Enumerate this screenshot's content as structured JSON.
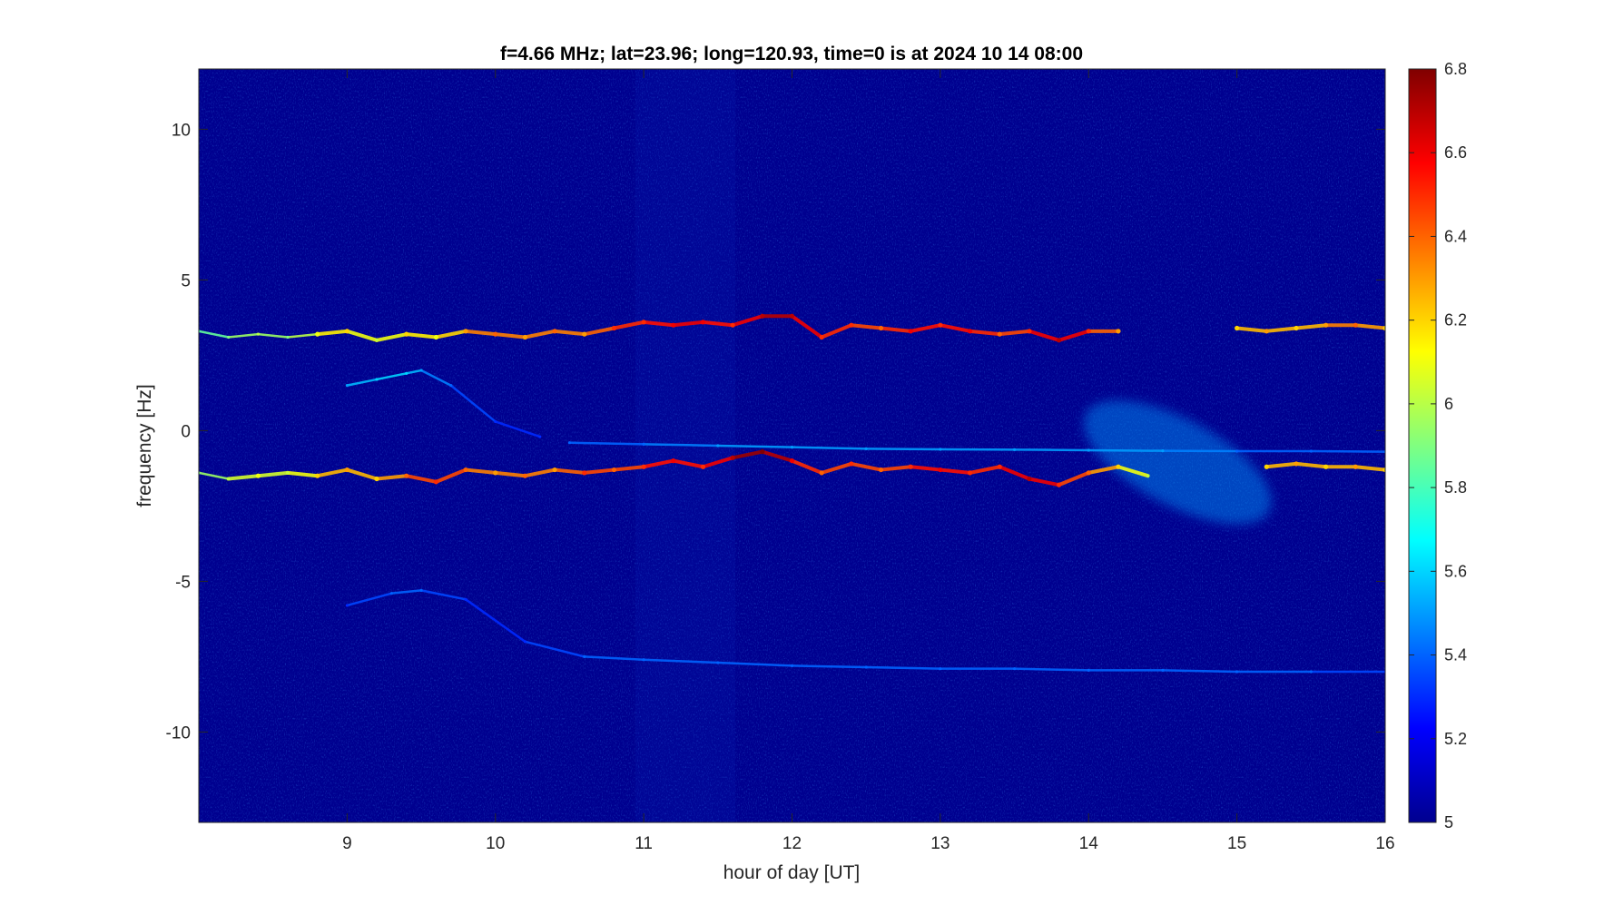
{
  "chart_data": {
    "type": "heatmap",
    "title": "f=4.66 MHz;  lat=23.96; long=120.93, time=0 is at 2024 10 14 08:00",
    "xlabel": "hour of day [UT]",
    "ylabel": "frequency [Hz]",
    "xlim": [
      8.0,
      16.0
    ],
    "ylim": [
      -13.0,
      12.0
    ],
    "xticks": [
      9,
      10,
      11,
      12,
      13,
      14,
      15,
      16
    ],
    "xtick_labels": [
      "9",
      "10",
      "11",
      "12",
      "13",
      "14",
      "15",
      "16"
    ],
    "yticks": [
      -10,
      -5,
      0,
      5,
      10
    ],
    "ytick_labels": [
      "-10",
      "-5",
      "0",
      "5",
      "10"
    ],
    "colormap": "jet",
    "clim": [
      5.0,
      6.8
    ],
    "colorbar_ticks": [
      5,
      5.2,
      5.4,
      5.6,
      5.8,
      6,
      6.2,
      6.4,
      6.6,
      6.8
    ],
    "colorbar_tick_labels": [
      "5",
      "5.2",
      "5.4",
      "5.6",
      "5.8",
      "6",
      "6.2",
      "6.4",
      "6.6",
      "6.8"
    ],
    "background_color": "#00008f",
    "series": [
      {
        "x": [
          8.0,
          8.2,
          8.4,
          8.6,
          8.8,
          9.0,
          9.2,
          9.4,
          9.6,
          9.8,
          10.0,
          10.2,
          10.4,
          10.6,
          10.8,
          11.0,
          11.2,
          11.4,
          11.6,
          11.8,
          12.0,
          12.2,
          12.4,
          12.6,
          12.8,
          13.0,
          13.2,
          13.4,
          13.6,
          13.8,
          14.0,
          14.2
        ],
        "y": [
          3.3,
          3.1,
          3.2,
          3.1,
          3.2,
          3.3,
          3.0,
          3.2,
          3.1,
          3.3,
          3.2,
          3.1,
          3.3,
          3.2,
          3.4,
          3.6,
          3.5,
          3.6,
          3.5,
          3.8,
          3.8,
          3.1,
          3.5,
          3.4,
          3.3,
          3.5,
          3.3,
          3.2,
          3.3,
          3.0,
          3.3,
          3.3
        ],
        "z": [
          5.8,
          5.9,
          6.0,
          5.9,
          6.1,
          6.2,
          6.0,
          6.2,
          6.1,
          6.3,
          6.4,
          6.3,
          6.4,
          6.3,
          6.5,
          6.5,
          6.6,
          6.6,
          6.5,
          6.7,
          6.7,
          6.5,
          6.5,
          6.4,
          6.6,
          6.5,
          6.6,
          6.4,
          6.5,
          6.7,
          6.5,
          6.3
        ]
      },
      {
        "x": [
          15.0,
          15.2,
          15.4,
          15.6,
          15.8,
          16.0
        ],
        "y": [
          3.4,
          3.3,
          3.4,
          3.5,
          3.5,
          3.4
        ],
        "z": [
          6.2,
          6.3,
          6.2,
          6.3,
          6.4,
          6.2
        ]
      },
      {
        "x": [
          8.0,
          8.2,
          8.4,
          8.6,
          8.8,
          9.0,
          9.2,
          9.4,
          9.6,
          9.8,
          10.0,
          10.2,
          10.4,
          10.6,
          10.8,
          11.0,
          11.2,
          11.4,
          11.6,
          11.8,
          12.0,
          12.2,
          12.4,
          12.6,
          12.8,
          13.0,
          13.2,
          13.4,
          13.6,
          13.8,
          14.0,
          14.2,
          14.4
        ],
        "y": [
          -1.4,
          -1.6,
          -1.5,
          -1.4,
          -1.5,
          -1.3,
          -1.6,
          -1.5,
          -1.7,
          -1.3,
          -1.4,
          -1.5,
          -1.3,
          -1.4,
          -1.3,
          -1.2,
          -1.0,
          -1.2,
          -0.9,
          -0.7,
          -1.0,
          -1.4,
          -1.1,
          -1.3,
          -1.2,
          -1.3,
          -1.4,
          -1.2,
          -1.6,
          -1.8,
          -1.4,
          -1.2,
          -1.5
        ],
        "z": [
          5.9,
          6.0,
          6.1,
          6.0,
          6.2,
          6.3,
          6.2,
          6.4,
          6.5,
          6.4,
          6.3,
          6.4,
          6.3,
          6.5,
          6.4,
          6.5,
          6.6,
          6.5,
          6.7,
          6.8,
          6.6,
          6.4,
          6.5,
          6.4,
          6.5,
          6.6,
          6.5,
          6.5,
          6.7,
          6.5,
          6.4,
          6.2,
          6.0
        ]
      },
      {
        "x": [
          15.2,
          15.4,
          15.6,
          15.8,
          16.0
        ],
        "y": [
          -1.2,
          -1.1,
          -1.2,
          -1.2,
          -1.3
        ],
        "z": [
          6.2,
          6.3,
          6.2,
          6.3,
          6.2
        ]
      },
      {
        "x": [
          9.0,
          9.2,
          9.4,
          9.5,
          9.7,
          10.0,
          10.3
        ],
        "y": [
          1.5,
          1.7,
          1.9,
          2.0,
          1.5,
          0.3,
          -0.2
        ],
        "z": [
          5.5,
          5.6,
          5.6,
          5.5,
          5.4,
          5.3,
          5.3
        ]
      },
      {
        "x": [
          10.5,
          11.0,
          11.5,
          12.0,
          12.5,
          13.0,
          13.5,
          14.0,
          14.5,
          15.0,
          15.5,
          16.0
        ],
        "y": [
          -0.4,
          -0.45,
          -0.5,
          -0.55,
          -0.6,
          -0.62,
          -0.63,
          -0.65,
          -0.67,
          -0.68,
          -0.68,
          -0.7
        ],
        "z": [
          5.4,
          5.4,
          5.5,
          5.5,
          5.5,
          5.5,
          5.5,
          5.5,
          5.5,
          5.4,
          5.4,
          5.4
        ]
      },
      {
        "x": [
          9.0,
          9.3,
          9.5,
          9.8,
          10.2,
          10.6,
          11.0,
          11.5,
          12.0,
          12.5,
          13.0,
          13.5,
          14.0,
          14.5,
          15.0,
          15.5,
          16.0
        ],
        "y": [
          -5.8,
          -5.4,
          -5.3,
          -5.6,
          -7.0,
          -7.5,
          -7.6,
          -7.7,
          -7.8,
          -7.85,
          -7.9,
          -7.9,
          -7.95,
          -7.95,
          -8.0,
          -8.0,
          -8.0
        ],
        "z": [
          5.3,
          5.4,
          5.4,
          5.3,
          5.3,
          5.4,
          5.4,
          5.4,
          5.4,
          5.4,
          5.4,
          5.4,
          5.4,
          5.4,
          5.4,
          5.4,
          5.3
        ]
      }
    ],
    "diffuse_regions": [
      {
        "x": [
          13.9,
          15.3
        ],
        "y": [
          -2.9,
          0.8
        ],
        "z": 5.5
      }
    ]
  }
}
